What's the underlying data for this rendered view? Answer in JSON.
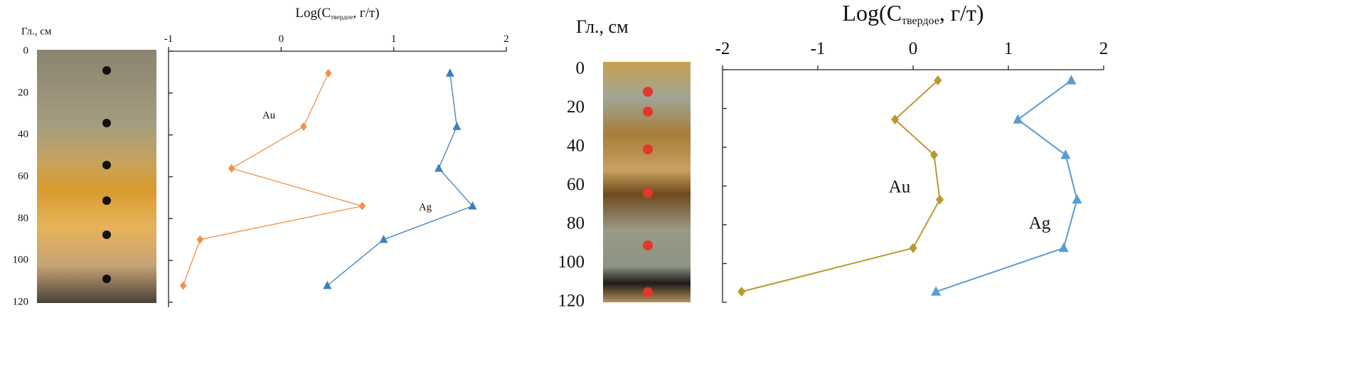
{
  "chart_data": [
    {
      "type": "line",
      "title": [
        "Log(C",
        "твердое",
        ", г/т)"
      ],
      "y_label": "Гл., см",
      "xlim": [
        -1,
        2
      ],
      "xticks": [
        -1,
        0,
        1,
        2
      ],
      "ylim": [
        0,
        120
      ],
      "yticks": [
        0,
        20,
        40,
        60,
        80,
        100,
        120
      ],
      "y_inverted": true,
      "y": [
        10.5,
        36,
        56,
        74,
        90,
        112
      ],
      "series": [
        {
          "name": "Au",
          "color": "#f0914a",
          "marker": "diamond",
          "values": [
            0.42,
            0.2,
            -0.44,
            0.72,
            -0.72,
            -0.87
          ]
        },
        {
          "name": "Ag",
          "color": "#3d7fbf",
          "marker": "triangle",
          "values": [
            1.5,
            1.56,
            1.4,
            1.7,
            0.91,
            0.41
          ]
        }
      ]
    },
    {
      "type": "line",
      "title": [
        "Log(C",
        "твердое",
        ", г/т)"
      ],
      "y_label": "Гл., см",
      "xlim": [
        -2,
        2
      ],
      "xticks": [
        -2,
        -1,
        0,
        1,
        2
      ],
      "ylim": [
        0,
        120
      ],
      "yticks": [
        0,
        20,
        40,
        60,
        80,
        100,
        120
      ],
      "y_inverted": true,
      "y": [
        5.5,
        25.7,
        44,
        67,
        92,
        114.5
      ],
      "series": [
        {
          "name": "Au",
          "color": "#b89a2e",
          "marker": "diamond",
          "values": [
            0.26,
            -0.19,
            0.22,
            0.28,
            0,
            -1.8
          ]
        },
        {
          "name": "Ag",
          "color": "#5b9bd0",
          "marker": "triangle",
          "values": [
            1.66,
            1.1,
            1.6,
            1.72,
            1.58,
            0.24
          ]
        }
      ]
    }
  ]
}
